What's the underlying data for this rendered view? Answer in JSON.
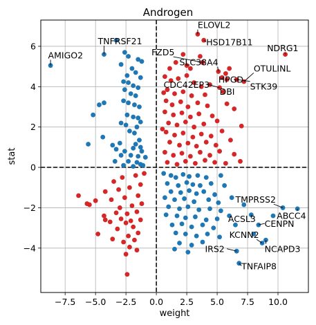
{
  "chart_data": {
    "type": "scatter",
    "title": "Androgen",
    "xlabel": "weight",
    "ylabel": "stat",
    "xlim": [
      -9.5,
      12.5
    ],
    "ylim": [
      -6.2,
      7.3
    ],
    "xticks": [
      -7.5,
      -5.0,
      -2.5,
      0.0,
      2.5,
      5.0,
      7.5,
      10.0
    ],
    "xtick_labels": [
      "−7.5",
      "−5.0",
      "−2.5",
      "0.0",
      "2.5",
      "5.0",
      "7.5",
      "10.0"
    ],
    "yticks": [
      -4,
      -2,
      0,
      2,
      4,
      6
    ],
    "ytick_labels": [
      "−4",
      "−2",
      "0",
      "2",
      "4",
      "6"
    ],
    "grid": true,
    "reference_lines": {
      "x": 0,
      "y": 0,
      "style": "dashed",
      "color": "#000000"
    },
    "colors": {
      "positive": "#d62728",
      "negative": "#1f77b4"
    },
    "series": [
      {
        "color": "#1f77b4",
        "points": [
          [
            -8.7,
            5.05
          ],
          [
            -4.3,
            5.6
          ],
          [
            -3.3,
            6.3
          ],
          [
            -2.6,
            5.7
          ],
          [
            -2.3,
            5.5
          ],
          [
            -1.5,
            5.35
          ],
          [
            -1.2,
            5.25
          ],
          [
            -2.9,
            5.1
          ],
          [
            -2.0,
            4.9
          ],
          [
            -1.7,
            4.7
          ],
          [
            -2.4,
            4.55
          ],
          [
            -1.3,
            4.45
          ],
          [
            -2.7,
            4.25
          ],
          [
            -2.3,
            4.2
          ],
          [
            -1.9,
            4.05
          ],
          [
            -1.5,
            3.95
          ],
          [
            -2.6,
            3.85
          ],
          [
            -2.1,
            3.65
          ],
          [
            -1.7,
            3.55
          ],
          [
            -4.7,
            3.1
          ],
          [
            -4.3,
            3.2
          ],
          [
            -2.7,
            3.3
          ],
          [
            -2.3,
            3.2
          ],
          [
            -1.8,
            3.1
          ],
          [
            -1.4,
            3.0
          ],
          [
            -5.2,
            2.6
          ],
          [
            -2.4,
            2.6
          ],
          [
            -1.9,
            2.5
          ],
          [
            -1.5,
            2.45
          ],
          [
            -2.9,
            2.2
          ],
          [
            -2.5,
            2.1
          ],
          [
            -1.3,
            2.25
          ],
          [
            -1.6,
            2.0
          ],
          [
            -2.2,
            1.8
          ],
          [
            -1.8,
            1.7
          ],
          [
            -4.4,
            1.5
          ],
          [
            -5.6,
            1.15
          ],
          [
            -3.6,
            1.1
          ],
          [
            -3.0,
            1.2
          ],
          [
            -1.4,
            1.35
          ],
          [
            -1.7,
            1.15
          ],
          [
            -1.3,
            1.0
          ],
          [
            -3.3,
            0.9
          ],
          [
            -1.9,
            0.95
          ],
          [
            -2.6,
            0.8
          ],
          [
            -1.2,
            0.8
          ],
          [
            -2.9,
            0.6
          ],
          [
            -2.1,
            0.6
          ],
          [
            -1.5,
            0.55
          ],
          [
            -0.9,
            0.5
          ],
          [
            -3.4,
            0.3
          ],
          [
            -2.3,
            0.3
          ],
          [
            -1.6,
            0.25
          ],
          [
            -1.3,
            0.15
          ],
          [
            -2.7,
            0.1
          ],
          [
            -1.9,
            0.05
          ],
          [
            -1.1,
            0.1
          ],
          [
            0.6,
            -0.3
          ],
          [
            1.2,
            -0.4
          ],
          [
            1.6,
            -0.5
          ],
          [
            2.2,
            -0.35
          ],
          [
            2.7,
            -0.45
          ],
          [
            3.4,
            -0.4
          ],
          [
            4.1,
            -0.5
          ],
          [
            5.3,
            -0.4
          ],
          [
            0.9,
            -0.8
          ],
          [
            1.8,
            -0.9
          ],
          [
            2.5,
            -0.75
          ],
          [
            3.0,
            -0.85
          ],
          [
            3.6,
            -0.9
          ],
          [
            4.5,
            -0.8
          ],
          [
            5.6,
            -0.9
          ],
          [
            1.2,
            -1.2
          ],
          [
            2.0,
            -1.25
          ],
          [
            2.7,
            -1.15
          ],
          [
            3.3,
            -1.3
          ],
          [
            3.9,
            -1.2
          ],
          [
            4.8,
            -1.35
          ],
          [
            0.7,
            -1.5
          ],
          [
            1.5,
            -1.6
          ],
          [
            2.3,
            -1.55
          ],
          [
            3.1,
            -1.7
          ],
          [
            4.3,
            -1.6
          ],
          [
            5.1,
            -1.75
          ],
          [
            6.2,
            -1.5
          ],
          [
            1.0,
            -1.95
          ],
          [
            1.9,
            -2.05
          ],
          [
            2.6,
            -1.95
          ],
          [
            3.5,
            -2.1
          ],
          [
            4.4,
            -2.05
          ],
          [
            5.3,
            -2.15
          ],
          [
            0.8,
            -2.35
          ],
          [
            1.7,
            -2.4
          ],
          [
            2.4,
            -2.5
          ],
          [
            3.2,
            -2.45
          ],
          [
            4.1,
            -2.6
          ],
          [
            5.0,
            -2.55
          ],
          [
            6.0,
            -2.4
          ],
          [
            1.3,
            -2.85
          ],
          [
            2.1,
            -2.8
          ],
          [
            2.9,
            -2.95
          ],
          [
            3.8,
            -2.85
          ],
          [
            4.7,
            -3.0
          ],
          [
            1.6,
            -3.25
          ],
          [
            2.4,
            -3.3
          ],
          [
            3.3,
            -3.4
          ],
          [
            4.2,
            -3.3
          ],
          [
            5.2,
            -3.45
          ],
          [
            1.9,
            -3.75
          ],
          [
            2.9,
            -3.85
          ],
          [
            3.8,
            -3.7
          ],
          [
            1.5,
            -4.05
          ],
          [
            2.6,
            -4.2
          ],
          [
            6.6,
            -4.15
          ],
          [
            6.8,
            -4.75
          ],
          [
            7.8,
            -2.35
          ],
          [
            8.4,
            -2.85
          ],
          [
            9.0,
            -3.6
          ],
          [
            8.7,
            -3.75
          ],
          [
            11.6,
            -2.05
          ],
          [
            10.4,
            -2.0
          ],
          [
            9.6,
            -2.4
          ],
          [
            7.2,
            -1.85
          ],
          [
            6.5,
            -2.85
          ],
          [
            8.0,
            -3.3
          ]
        ]
      },
      {
        "color": "#d62728",
        "points": [
          [
            10.6,
            5.6
          ],
          [
            3.4,
            6.6
          ],
          [
            3.9,
            6.3
          ],
          [
            3.6,
            5.5
          ],
          [
            3.8,
            5.2
          ],
          [
            2.2,
            5.6
          ],
          [
            1.6,
            5.2
          ],
          [
            1.1,
            4.9
          ],
          [
            2.5,
            5.05
          ],
          [
            2.8,
            4.9
          ],
          [
            5.1,
            4.75
          ],
          [
            5.4,
            4.45
          ],
          [
            5.7,
            4.65
          ],
          [
            5.8,
            4.35
          ],
          [
            6.6,
            4.35
          ],
          [
            7.2,
            4.25
          ],
          [
            5.2,
            3.95
          ],
          [
            5.5,
            3.75
          ],
          [
            0.7,
            4.5
          ],
          [
            1.2,
            4.3
          ],
          [
            1.8,
            4.4
          ],
          [
            2.5,
            4.55
          ],
          [
            3.1,
            4.2
          ],
          [
            3.7,
            4.0
          ],
          [
            4.4,
            4.1
          ],
          [
            0.9,
            3.85
          ],
          [
            1.5,
            3.65
          ],
          [
            2.2,
            3.75
          ],
          [
            2.9,
            3.55
          ],
          [
            4.0,
            3.6
          ],
          [
            0.8,
            3.3
          ],
          [
            1.3,
            3.1
          ],
          [
            2.0,
            3.25
          ],
          [
            2.6,
            3.0
          ],
          [
            3.4,
            3.2
          ],
          [
            4.2,
            3.05
          ],
          [
            5.8,
            3.15
          ],
          [
            0.7,
            2.75
          ],
          [
            1.4,
            2.6
          ],
          [
            2.1,
            2.7
          ],
          [
            2.8,
            2.5
          ],
          [
            3.5,
            2.65
          ],
          [
            4.6,
            2.55
          ],
          [
            6.4,
            2.9
          ],
          [
            1.0,
            2.2
          ],
          [
            1.7,
            2.1
          ],
          [
            2.4,
            2.25
          ],
          [
            3.1,
            2.0
          ],
          [
            3.9,
            2.15
          ],
          [
            5.0,
            2.3
          ],
          [
            7.0,
            2.05
          ],
          [
            0.8,
            1.75
          ],
          [
            1.5,
            1.6
          ],
          [
            2.2,
            1.7
          ],
          [
            3.0,
            1.5
          ],
          [
            3.7,
            1.65
          ],
          [
            4.5,
            1.55
          ],
          [
            5.4,
            1.8
          ],
          [
            1.1,
            1.25
          ],
          [
            1.9,
            1.1
          ],
          [
            2.6,
            1.2
          ],
          [
            3.3,
            1.05
          ],
          [
            4.1,
            1.25
          ],
          [
            4.9,
            1.1
          ],
          [
            6.1,
            1.35
          ],
          [
            0.7,
            0.75
          ],
          [
            1.4,
            0.6
          ],
          [
            2.1,
            0.7
          ],
          [
            2.8,
            0.55
          ],
          [
            3.6,
            0.75
          ],
          [
            4.4,
            0.6
          ],
          [
            5.2,
            0.8
          ],
          [
            6.4,
            0.65
          ],
          [
            0.9,
            0.25
          ],
          [
            1.7,
            0.15
          ],
          [
            2.4,
            0.3
          ],
          [
            3.2,
            0.2
          ],
          [
            4.0,
            0.35
          ],
          [
            4.8,
            0.25
          ],
          [
            5.7,
            0.2
          ],
          [
            6.9,
            0.3
          ],
          [
            0.5,
            1.9
          ],
          [
            0.6,
            3.7
          ],
          [
            6.0,
            4.9
          ],
          [
            -1.7,
            -0.4
          ],
          [
            -2.8,
            -0.5
          ],
          [
            -3.5,
            -0.7
          ],
          [
            -1.3,
            -0.85
          ],
          [
            -2.2,
            -1.0
          ],
          [
            -3.1,
            -1.1
          ],
          [
            -4.2,
            -1.2
          ],
          [
            -1.5,
            -1.4
          ],
          [
            -2.6,
            -1.5
          ],
          [
            -3.7,
            -1.6
          ],
          [
            -5.0,
            -1.65
          ],
          [
            -6.4,
            -1.4
          ],
          [
            -1.2,
            -1.8
          ],
          [
            -2.0,
            -1.9
          ],
          [
            -3.0,
            -2.0
          ],
          [
            -5.5,
            -1.85
          ],
          [
            -5.7,
            -1.8
          ],
          [
            -1.6,
            -2.2
          ],
          [
            -2.4,
            -2.3
          ],
          [
            -3.3,
            -2.25
          ],
          [
            -4.3,
            -2.4
          ],
          [
            -1.3,
            -2.6
          ],
          [
            -2.1,
            -2.65
          ],
          [
            -2.9,
            -2.55
          ],
          [
            -3.8,
            -2.7
          ],
          [
            -4.2,
            -2.6
          ],
          [
            -2.5,
            -2.75
          ],
          [
            -1.9,
            -2.95
          ],
          [
            -3.2,
            -3.05
          ],
          [
            -4.8,
            -3.3
          ],
          [
            -1.5,
            -3.25
          ],
          [
            -2.3,
            -3.4
          ],
          [
            -1.8,
            -3.6
          ],
          [
            -2.7,
            -3.7
          ],
          [
            -3.6,
            -3.55
          ],
          [
            -2.2,
            -3.95
          ],
          [
            -1.6,
            -4.1
          ],
          [
            -2.5,
            -4.3
          ],
          [
            -2.4,
            -5.3
          ],
          [
            -1.0,
            -0.3
          ]
        ]
      }
    ],
    "annotations": [
      {
        "text": "ELOVL2",
        "x": 3.4,
        "y": 6.6,
        "tx": 3.4,
        "ty": 6.9
      },
      {
        "text": "TNFRSF21",
        "x": -4.3,
        "y": 5.6,
        "tx": -4.8,
        "ty": 6.1
      },
      {
        "text": "AMIGO2",
        "x": -8.7,
        "y": 5.05,
        "tx": -8.9,
        "ty": 5.4
      },
      {
        "text": "FZD5",
        "x": 3.8,
        "y": 5.2,
        "tx": -0.4,
        "ty": 5.55
      },
      {
        "text": "HSD17B11",
        "x": 3.9,
        "y": 6.3,
        "tx": 4.1,
        "ty": 6.05
      },
      {
        "text": "NDRG1",
        "x": 10.6,
        "y": 5.6,
        "tx": 9.1,
        "ty": 5.75
      },
      {
        "text": "SLC38A4",
        "x": 5.1,
        "y": 4.75,
        "tx": 1.9,
        "ty": 5.05
      },
      {
        "text": "OTULINL",
        "x": 7.2,
        "y": 4.25,
        "tx": 8.0,
        "ty": 4.75
      },
      {
        "text": "HPGD",
        "x": 5.4,
        "y": 4.45,
        "tx": 5.1,
        "ty": 4.2
      },
      {
        "text": "CDC42EP3",
        "x": 5.2,
        "y": 3.95,
        "tx": 0.6,
        "ty": 3.95
      },
      {
        "text": "STK39",
        "x": 6.6,
        "y": 4.35,
        "tx": 7.7,
        "ty": 3.85
      },
      {
        "text": "DBI",
        "x": 5.5,
        "y": 3.75,
        "tx": 5.2,
        "ty": 3.6
      },
      {
        "text": "TMPRSS2",
        "x": 10.4,
        "y": -2.0,
        "tx": 6.5,
        "ty": -1.75
      },
      {
        "text": "ABCC4",
        "x": 11.6,
        "y": -2.05,
        "tx": 9.9,
        "ty": -2.55
      },
      {
        "text": "ACSL3",
        "x": 7.8,
        "y": -2.35,
        "tx": 5.9,
        "ty": -2.7
      },
      {
        "text": "CENPN",
        "x": 8.4,
        "y": -2.85,
        "tx": 8.9,
        "ty": -2.95
      },
      {
        "text": "KCNN2",
        "x": 8.7,
        "y": -3.75,
        "tx": 6.0,
        "ty": -3.5
      },
      {
        "text": "NCAPD3",
        "x": 9.0,
        "y": -3.6,
        "tx": 8.9,
        "ty": -4.2
      },
      {
        "text": "IRS2",
        "x": 6.6,
        "y": -4.15,
        "tx": 4.0,
        "ty": -4.2
      },
      {
        "text": "TNFAIP8",
        "x": 6.8,
        "y": -4.75,
        "tx": 7.0,
        "ty": -5.05
      }
    ]
  }
}
